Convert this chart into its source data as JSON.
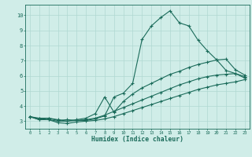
{
  "xlabel": "Humidex (Indice chaleur)",
  "bg_color": "#d0ede8",
  "line_color": "#1a6b5a",
  "grid_color": "#b0d8d2",
  "xlim": [
    -0.5,
    23.5
  ],
  "ylim": [
    2.5,
    10.7
  ],
  "x_ticks": [
    0,
    1,
    2,
    3,
    4,
    5,
    6,
    7,
    8,
    9,
    10,
    11,
    12,
    13,
    14,
    15,
    16,
    17,
    18,
    19,
    20,
    21,
    22,
    23
  ],
  "y_ticks": [
    3,
    4,
    5,
    6,
    7,
    8,
    9,
    10
  ],
  "curve_main": [
    3.3,
    3.1,
    3.2,
    3.05,
    3.1,
    3.05,
    3.05,
    3.15,
    3.35,
    4.6,
    4.85,
    5.5,
    8.4,
    9.3,
    9.85,
    10.3,
    9.5,
    9.3,
    8.35,
    7.65,
    7.05,
    6.35,
    6.15,
    5.95
  ],
  "curve_top": [
    3.3,
    3.2,
    3.2,
    3.1,
    3.0,
    3.1,
    3.2,
    3.5,
    4.6,
    3.6,
    4.3,
    4.8,
    5.2,
    5.5,
    5.8,
    6.1,
    6.3,
    6.55,
    6.75,
    6.9,
    7.05,
    7.1,
    6.4,
    6.05
  ],
  "curve_mid": [
    3.3,
    3.15,
    3.1,
    3.0,
    3.0,
    3.05,
    3.1,
    3.2,
    3.4,
    3.65,
    3.9,
    4.15,
    4.4,
    4.65,
    4.9,
    5.15,
    5.4,
    5.6,
    5.8,
    5.95,
    6.05,
    6.1,
    6.15,
    5.85
  ],
  "curve_bot": [
    3.3,
    3.1,
    3.1,
    2.9,
    2.85,
    2.95,
    3.0,
    3.05,
    3.15,
    3.3,
    3.5,
    3.7,
    3.9,
    4.1,
    4.3,
    4.5,
    4.7,
    4.9,
    5.1,
    5.25,
    5.4,
    5.5,
    5.6,
    5.75
  ]
}
